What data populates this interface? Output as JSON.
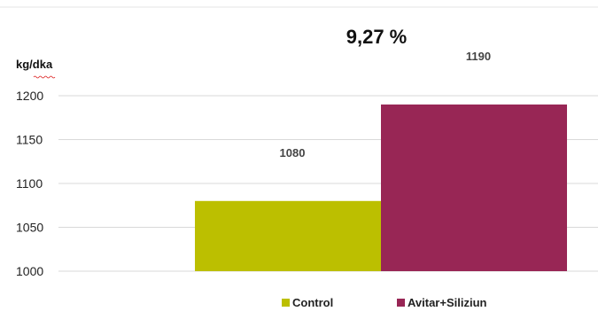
{
  "chart_data": {
    "type": "bar",
    "categories": [
      ""
    ],
    "series": [
      {
        "name": "Control",
        "values": [
          1080
        ],
        "color": "#bcbf00"
      },
      {
        "name": "Avitar+Siliziun",
        "values": [
          1190
        ],
        "color": "#982655"
      }
    ],
    "ylabel": "kg/dka",
    "ylim": [
      1000,
      1200
    ],
    "yticks": [
      1000,
      1050,
      1100,
      1150,
      1200
    ],
    "annotation": "9,27 %",
    "grid": true,
    "legend_position": "bottom"
  }
}
